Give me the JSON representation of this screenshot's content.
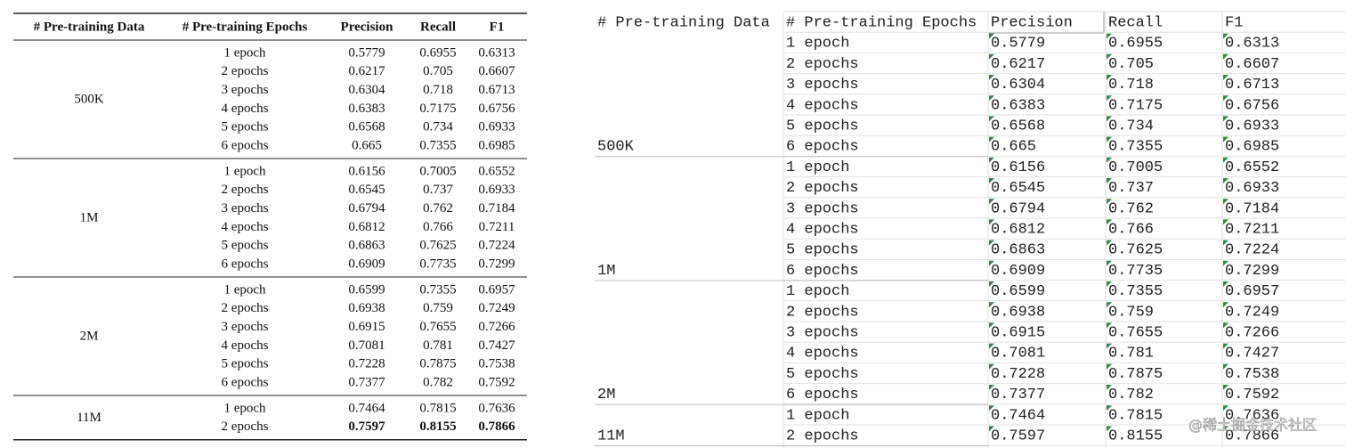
{
  "table": {
    "columns": [
      "# Pre-training Data",
      "# Pre-training Epochs",
      "Precision",
      "Recall",
      "F1"
    ],
    "groups": [
      {
        "label": "500K",
        "rows": [
          [
            "1 epoch",
            "0.5779",
            "0.6955",
            "0.6313"
          ],
          [
            "2 epochs",
            "0.6217",
            "0.705",
            "0.6607"
          ],
          [
            "3 epochs",
            "0.6304",
            "0.718",
            "0.6713"
          ],
          [
            "4 epochs",
            "0.6383",
            "0.7175",
            "0.6756"
          ],
          [
            "5 epochs",
            "0.6568",
            "0.734",
            "0.6933"
          ],
          [
            "6 epochs",
            "0.665",
            "0.7355",
            "0.6985"
          ]
        ]
      },
      {
        "label": "1M",
        "rows": [
          [
            "1 epoch",
            "0.6156",
            "0.7005",
            "0.6552"
          ],
          [
            "2 epochs",
            "0.6545",
            "0.737",
            "0.6933"
          ],
          [
            "3 epochs",
            "0.6794",
            "0.762",
            "0.7184"
          ],
          [
            "4 epochs",
            "0.6812",
            "0.766",
            "0.7211"
          ],
          [
            "5 epochs",
            "0.6863",
            "0.7625",
            "0.7224"
          ],
          [
            "6 epochs",
            "0.6909",
            "0.7735",
            "0.7299"
          ]
        ]
      },
      {
        "label": "2M",
        "rows": [
          [
            "1 epoch",
            "0.6599",
            "0.7355",
            "0.6957"
          ],
          [
            "2 epochs",
            "0.6938",
            "0.759",
            "0.7249"
          ],
          [
            "3 epochs",
            "0.6915",
            "0.7655",
            "0.7266"
          ],
          [
            "4 epochs",
            "0.7081",
            "0.781",
            "0.7427"
          ],
          [
            "5 epochs",
            "0.7228",
            "0.7875",
            "0.7538"
          ],
          [
            "6 epochs",
            "0.7377",
            "0.782",
            "0.7592"
          ]
        ]
      },
      {
        "label": "11M",
        "rows": [
          [
            "1 epoch",
            "0.7464",
            "0.7815",
            "0.7636"
          ],
          [
            "2 epochs",
            "0.7597",
            "0.8155",
            "0.7866"
          ]
        ]
      }
    ]
  },
  "watermark": "@稀土掘金技术社区"
}
